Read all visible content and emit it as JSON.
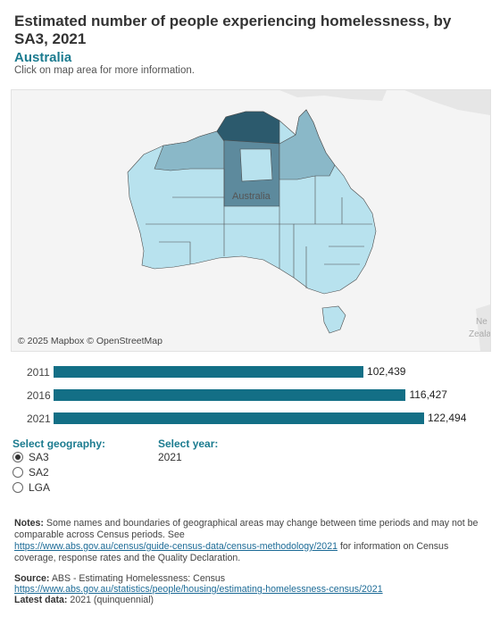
{
  "header": {
    "title": "Estimated number of people experiencing homelessness, by SA3, 2021",
    "subtitle": "Australia",
    "hint": "Click on map area for more information."
  },
  "map": {
    "attribution": "© 2025 Mapbox © OpenStreetMap",
    "region_label": "Australia",
    "edge_label_1": "Ne",
    "edge_label_2": "Zeala",
    "colors": {
      "light": "#b8e2ee",
      "mid": "#8ab8c8",
      "dark": "#5d8a9d",
      "darkest": "#2c5a6d"
    }
  },
  "chart_data": {
    "type": "bar",
    "categories": [
      "2011",
      "2016",
      "2021"
    ],
    "values": [
      102439,
      116427,
      122494
    ],
    "value_labels": [
      "102,439",
      "116,427",
      "122,494"
    ],
    "color": "#136f86"
  },
  "controls": {
    "geography_label": "Select geography:",
    "geography_options": [
      {
        "label": "SA3",
        "checked": true
      },
      {
        "label": "SA2",
        "checked": false
      },
      {
        "label": "LGA",
        "checked": false
      }
    ],
    "year_label": "Select year:",
    "year_value": "2021"
  },
  "notes": {
    "label": "Notes:",
    "text": "Some names and boundaries of geographical areas may change between time periods and may not be comparable across Census periods. See",
    "link": "https://www.abs.gov.au/census/guide-census-data/census-methodology/2021",
    "text_after": "for information on Census coverage, response rates and the Quality Declaration."
  },
  "source": {
    "label": "Source:",
    "text": "ABS - Estimating Homelessness: Census",
    "link": "https://www.abs.gov.au/statistics/people/housing/estimating-homelessness-census/2021",
    "latest_label": "Latest data:",
    "latest_value": "2021 (quinquennial)"
  }
}
